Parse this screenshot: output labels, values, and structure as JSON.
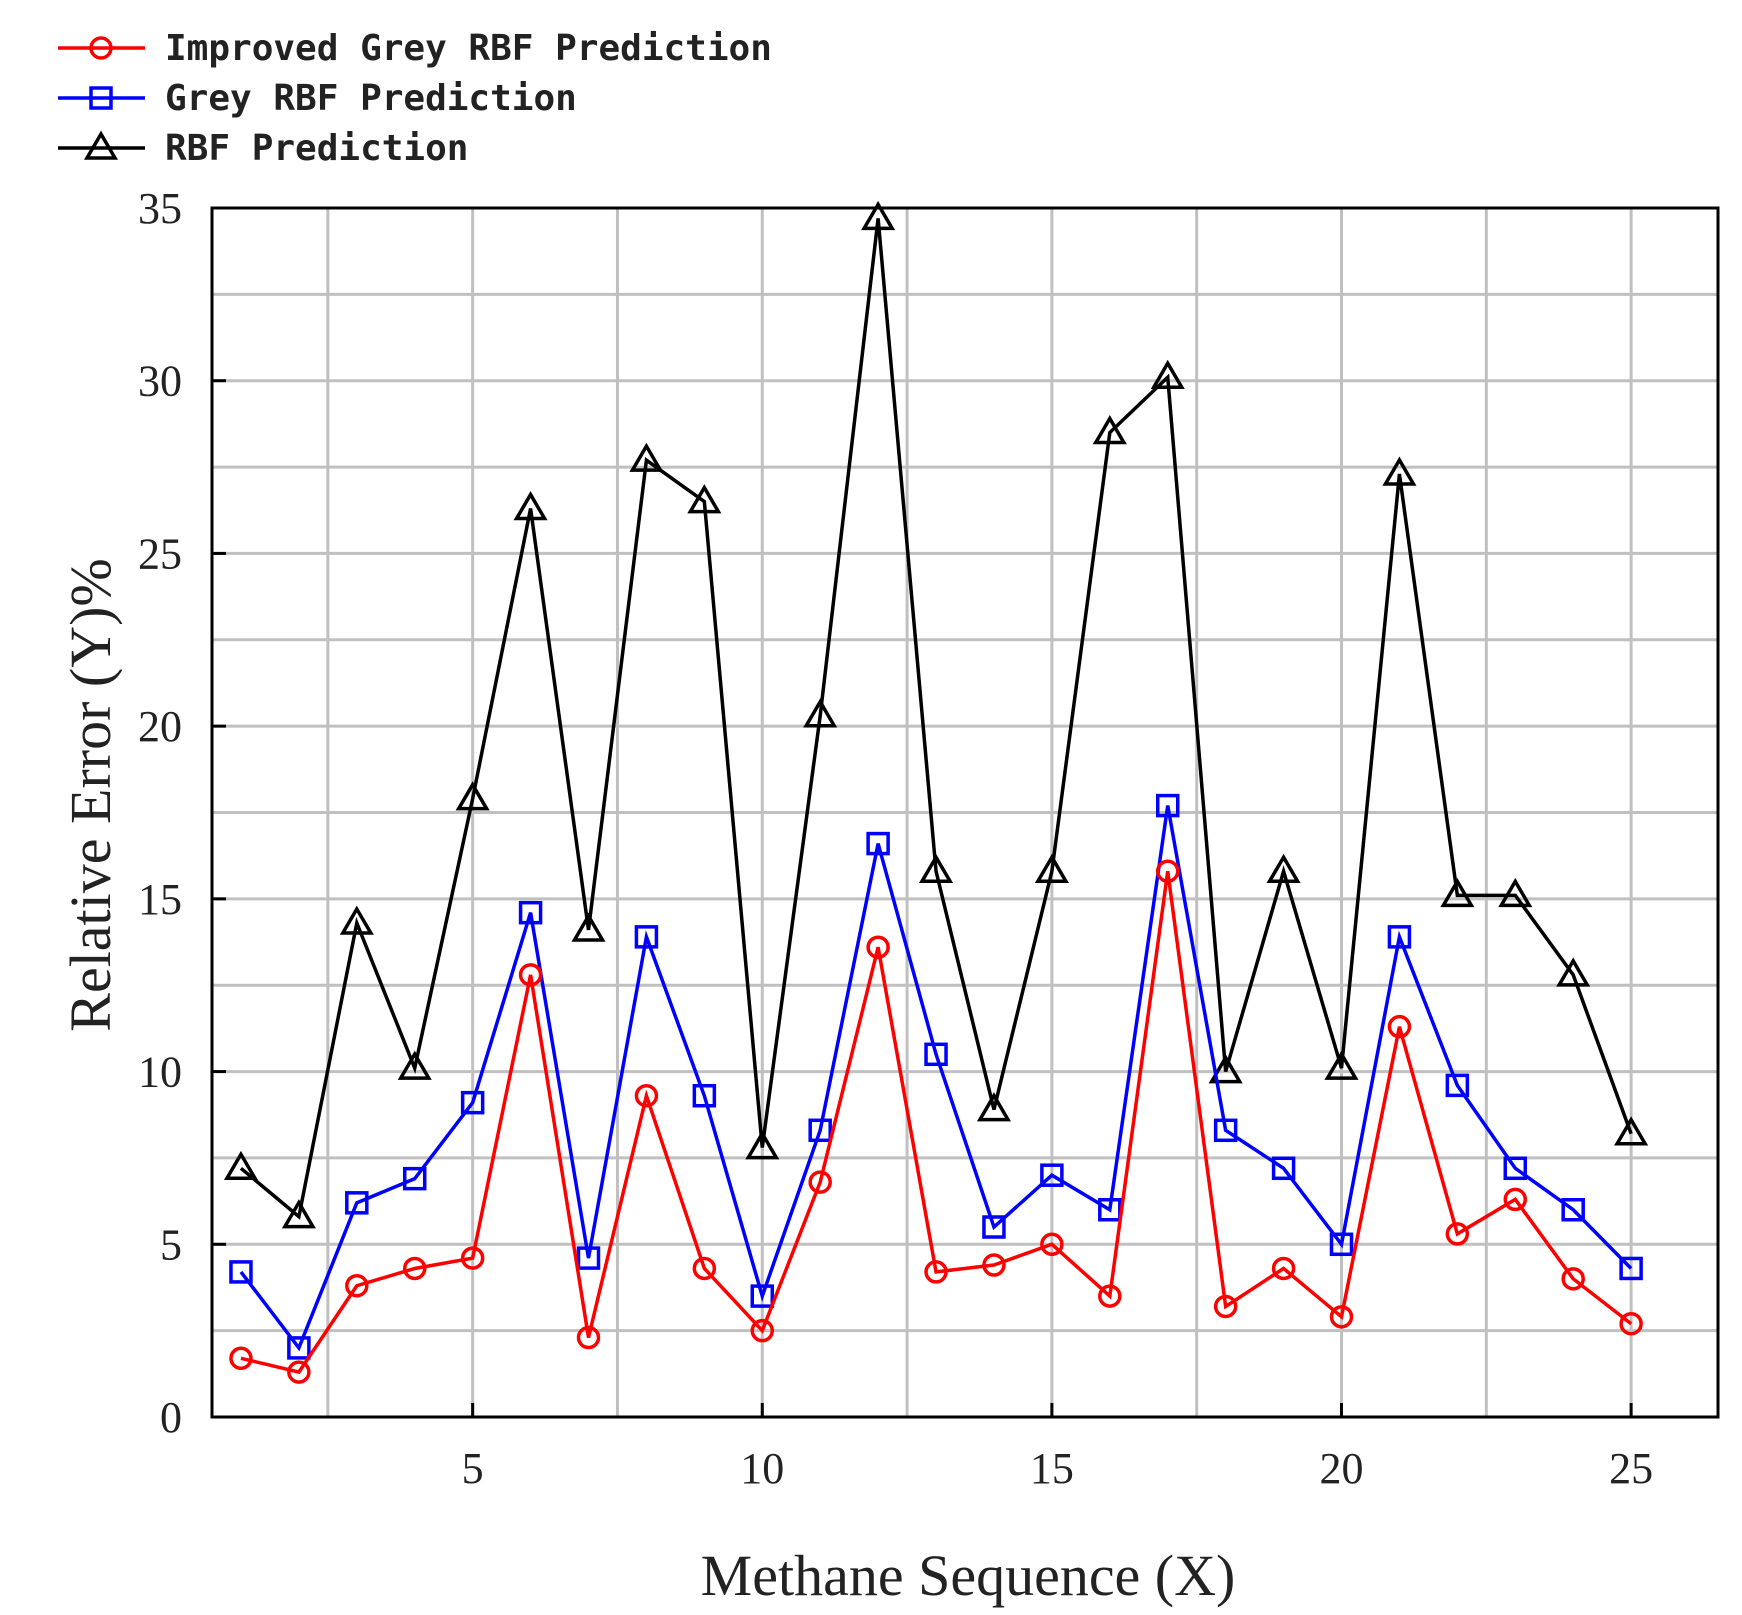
{
  "chart_data": {
    "type": "line",
    "title": "",
    "xlabel": "Methane Sequence (X)",
    "ylabel": "Relative Error (Y)%",
    "xlim": [
      0.5,
      26.5
    ],
    "ylim": [
      0,
      35
    ],
    "x_ticks": [
      5,
      10,
      15,
      20,
      25
    ],
    "y_ticks": [
      0,
      5,
      10,
      15,
      20,
      25,
      30,
      35
    ],
    "grid": true,
    "legend_position": "top-left",
    "x": [
      1,
      2,
      3,
      4,
      5,
      6,
      7,
      8,
      9,
      10,
      11,
      12,
      13,
      14,
      15,
      16,
      17,
      18,
      19,
      20,
      21,
      22,
      23,
      24,
      25
    ],
    "series": [
      {
        "name": "Improved Grey RBF Prediction",
        "color": "#ff0000",
        "marker": "circle",
        "values": [
          1.7,
          1.3,
          3.8,
          4.3,
          4.6,
          12.8,
          2.3,
          9.3,
          4.3,
          2.5,
          6.8,
          13.6,
          4.2,
          4.4,
          5.0,
          3.5,
          15.8,
          3.2,
          4.3,
          2.9,
          11.3,
          5.3,
          6.3,
          4.0,
          2.7
        ]
      },
      {
        "name": "Grey RBF Prediction",
        "color": "#0000ff",
        "marker": "square",
        "values": [
          4.2,
          2.0,
          6.2,
          6.9,
          9.1,
          14.6,
          4.6,
          13.9,
          9.3,
          3.5,
          8.3,
          16.6,
          10.5,
          5.5,
          7.0,
          6.0,
          17.7,
          8.3,
          7.2,
          5.0,
          13.9,
          9.6,
          7.2,
          6.0,
          4.3
        ]
      },
      {
        "name": "RBF Prediction",
        "color": "#000000",
        "marker": "triangle",
        "values": [
          7.2,
          5.8,
          14.3,
          10.1,
          17.9,
          26.3,
          14.1,
          27.7,
          26.5,
          7.8,
          20.3,
          34.7,
          15.8,
          8.9,
          15.8,
          28.5,
          30.1,
          10.0,
          15.8,
          10.1,
          27.3,
          15.1,
          15.1,
          12.8,
          8.2
        ]
      }
    ]
  }
}
